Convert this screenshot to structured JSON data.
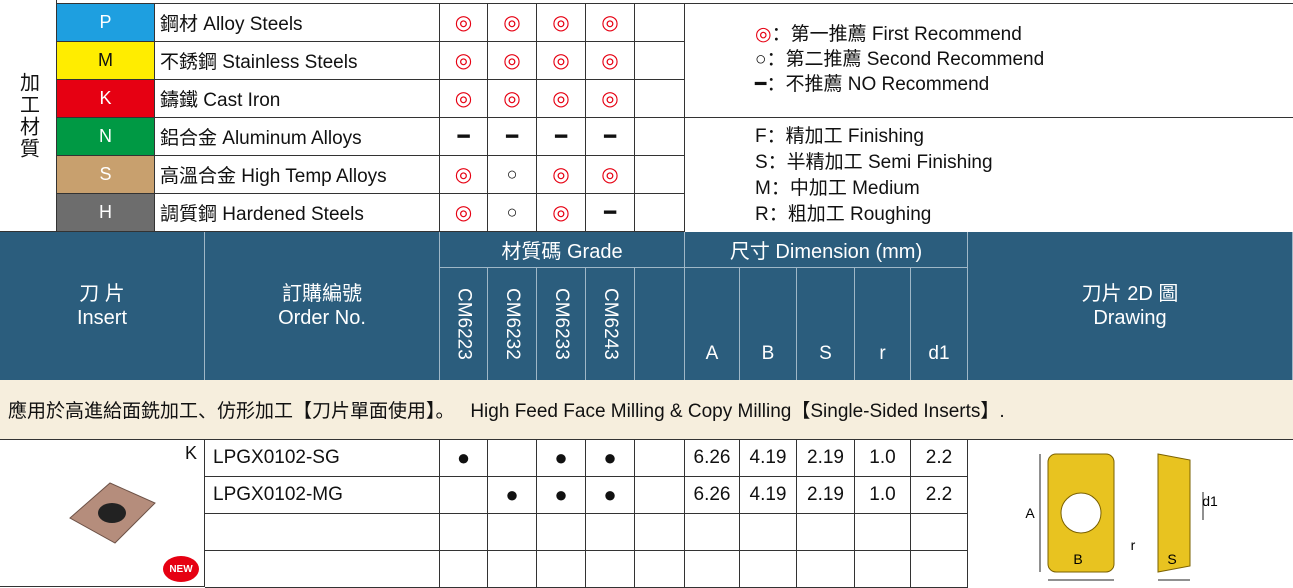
{
  "materials": {
    "label": "加工材質",
    "rows": [
      {
        "code": "P",
        "name": "鋼材 Alloy Steels",
        "grades": [
          "◎",
          "◎",
          "◎",
          "◎"
        ]
      },
      {
        "code": "M",
        "name": "不銹鋼 Stainless Steels",
        "grades": [
          "◎",
          "◎",
          "◎",
          "◎"
        ]
      },
      {
        "code": "K",
        "name": "鑄鐵 Cast Iron",
        "grades": [
          "◎",
          "◎",
          "◎",
          "◎"
        ]
      },
      {
        "code": "N",
        "name": "鋁合金 Aluminum Alloys",
        "grades": [
          "━",
          "━",
          "━",
          "━"
        ]
      },
      {
        "code": "S",
        "name": "高溫合金 High Temp Alloys",
        "grades": [
          "◎",
          "○",
          "◎",
          "◎"
        ]
      },
      {
        "code": "H",
        "name": "調質鋼 Hardened Steels",
        "grades": [
          "◎",
          "○",
          "◎",
          "━"
        ]
      }
    ]
  },
  "legend": {
    "recommend": [
      {
        "symbol": "◎",
        "text": "：第一推薦 First Recommend"
      },
      {
        "symbol": "○",
        "text": "：第二推薦 Second Recommend"
      },
      {
        "symbol": "━",
        "text": "：不推薦 NO Recommend"
      }
    ],
    "machining": [
      "F：精加工 Finishing",
      "S：半精加工 Semi Finishing",
      "M：中加工 Medium",
      "R：粗加工 Roughing"
    ]
  },
  "header": {
    "insert": [
      "刀 片",
      "Insert"
    ],
    "order": [
      "訂購編號",
      "Order No."
    ],
    "grade": "材質碼 Grade",
    "grades": [
      "CM6223",
      "CM6232",
      "CM6233",
      "CM6243"
    ],
    "dimension": "尺寸 Dimension (mm)",
    "dims": [
      "A",
      "B",
      "S",
      "r",
      "d1"
    ],
    "drawing": [
      "刀片 2D 圖",
      "Drawing"
    ]
  },
  "section": "應用於高進給面銑加工、仿形加工【刀片單面使用】。   High Feed Face Milling & Copy Milling【Single-Sided Inserts】.",
  "insert_tag": "K",
  "badge": "NEW",
  "products": [
    {
      "order": "LPGX0102-SG",
      "grades": [
        "●",
        null,
        "●",
        "●"
      ],
      "dims": [
        "6.26",
        "4.19",
        "2.19",
        "1.0",
        "2.2"
      ]
    },
    {
      "order": "LPGX0102-MG",
      "grades": [
        null,
        "●",
        "●",
        "●"
      ],
      "dims": [
        "6.26",
        "4.19",
        "2.19",
        "1.0",
        "2.2"
      ]
    }
  ],
  "drawing_labels": [
    "A",
    "B",
    "r",
    "d1",
    "S"
  ]
}
